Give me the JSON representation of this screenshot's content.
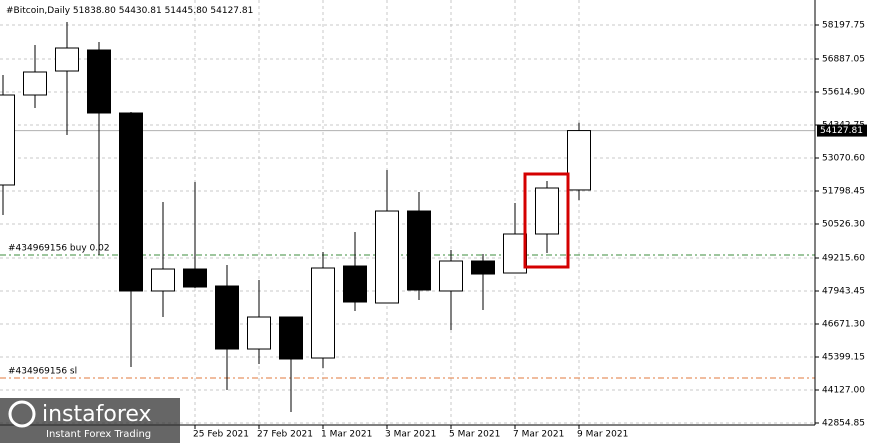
{
  "chart_data": {
    "type": "candlestick",
    "header": {
      "symbol": "#Bitcoin,Daily",
      "ohlc_labels": [
        "51838.80",
        "54430.81",
        "51445.80",
        "54127.81"
      ]
    },
    "categories": [
      null,
      null,
      null,
      null,
      null,
      null,
      "25 Feb 2021",
      null,
      "27 Feb 2021",
      null,
      "1 Mar 2021",
      null,
      "3 Mar 2021",
      null,
      "5 Mar 2021",
      null,
      "7 Mar 2021",
      null,
      "9 Mar 2021"
    ],
    "series": [
      {
        "name": "#Bitcoin",
        "open": [
          52030,
          55499,
          56424,
          57234,
          54805,
          47944,
          48791,
          48136,
          45707,
          46941,
          45360,
          48907,
          47481,
          51027,
          47944,
          49100,
          48637,
          50141,
          51838.8
        ],
        "high": [
          56270,
          57427,
          58313,
          57542,
          54844,
          51374,
          52145,
          48945,
          48367,
          46941,
          49447,
          50218,
          52608,
          51760,
          49524,
          49370,
          51336,
          52184,
          54430.81
        ],
        "low": [
          50873,
          54998,
          53957,
          49331,
          45013,
          46941,
          48058,
          44127,
          45129,
          43279,
          44975,
          47172,
          47481,
          47596,
          46440,
          47211,
          48637,
          49408,
          51445.8
        ],
        "close": [
          55499,
          56386,
          57311,
          54805,
          47944,
          48791,
          48097,
          45707,
          46941,
          45322,
          48830,
          47519,
          51027,
          47982,
          49100,
          48598,
          50141,
          51914,
          54127.81
        ]
      }
    ],
    "ylim": [
      42777.75,
      59161.5
    ],
    "yticks": [
      58197.75,
      56887.05,
      {
        "value": 55614.9,
        "label": "55614.90"
      },
      54342.75,
      {
        "value": 53070.6,
        "label": "53070.60"
      },
      51798.45,
      {
        "value": 50526.3,
        "label": "50526.30"
      },
      {
        "value": 49215.6,
        "label": "49215.60"
      },
      47943.45,
      {
        "value": 46671.3,
        "label": "46671.30"
      },
      45399.15,
      {
        "value": 44127.0,
        "label": "44127.00"
      },
      42854.85
    ],
    "grid": true,
    "last_price": 54127.81,
    "levels": [
      {
        "label": "#434969156 buy 0.02",
        "value": 49331,
        "color": "#3c8c3c"
      },
      {
        "label": "#434969156 sl",
        "value": 44589,
        "color": "#e07a3c"
      }
    ],
    "watermark": {
      "brand": "instaforex",
      "tagline": "Instant Forex Trading"
    }
  }
}
